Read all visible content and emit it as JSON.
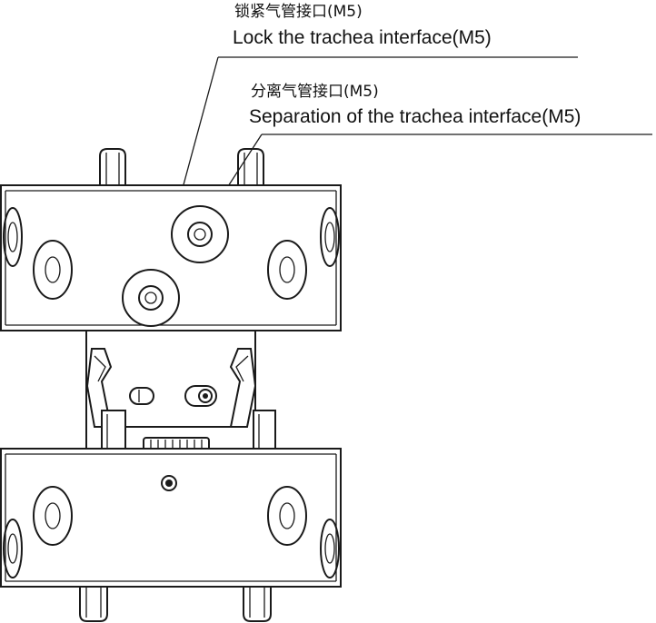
{
  "callouts": {
    "lock": {
      "cn": "锁紧气管接口(M5)",
      "en": "Lock the trachea interface(M5)"
    },
    "separation": {
      "cn": "分离气管接口(M5)",
      "en": "Separation of the trachea interface(M5)"
    }
  },
  "colors": {
    "line": "#1a1a1a",
    "background": "#ffffff"
  }
}
